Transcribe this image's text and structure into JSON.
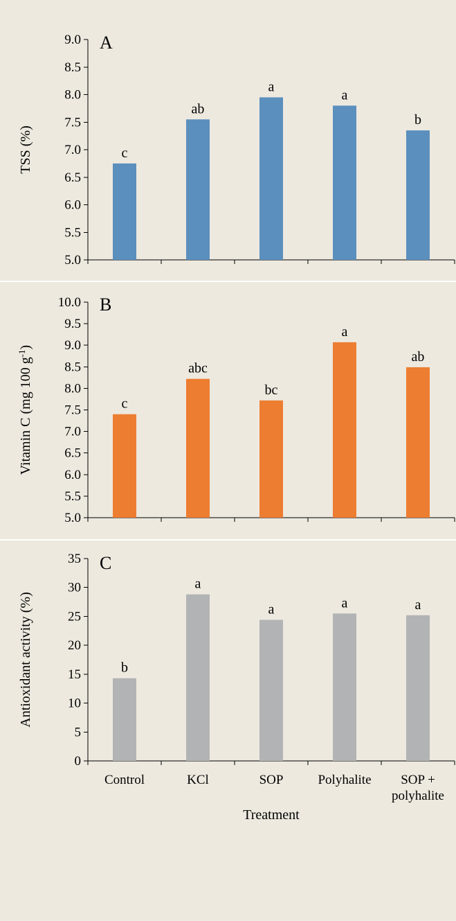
{
  "chart_data": [
    {
      "type": "bar",
      "panel": "A",
      "categories": [
        "Control",
        "KCl",
        "SOP",
        "Polyhalite",
        "SOP + polyhalite"
      ],
      "values": [
        6.75,
        7.55,
        7.95,
        7.8,
        7.35
      ],
      "annotations": [
        "c",
        "ab",
        "a",
        "a",
        "b"
      ],
      "ylabel": "TSS (%)",
      "ylim": [
        5.0,
        9.0
      ],
      "yticks": [
        "5.0",
        "5.5",
        "6.0",
        "6.5",
        "7.0",
        "7.5",
        "8.0",
        "8.5",
        "9.0"
      ],
      "color": "#5b8fbd",
      "grid": false
    },
    {
      "type": "bar",
      "panel": "B",
      "categories": [
        "Control",
        "KCl",
        "SOP",
        "Polyhalite",
        "SOP + polyhalite"
      ],
      "values": [
        7.4,
        8.22,
        7.72,
        9.07,
        8.49
      ],
      "annotations": [
        "c",
        "abc",
        "bc",
        "a",
        "ab"
      ],
      "ylabel": "Vitamin C (mg 100 g",
      "ylabel_sup": "-1",
      "ylabel_end": ")",
      "ylim": [
        5.0,
        10.0
      ],
      "yticks": [
        "5.0",
        "5.5",
        "6.0",
        "6.5",
        "7.0",
        "7.5",
        "8.0",
        "8.5",
        "9.0",
        "9.5",
        "10.0"
      ],
      "color": "#ed7d31",
      "grid": false
    },
    {
      "type": "bar",
      "panel": "C",
      "categories": [
        "Control",
        "KCl",
        "SOP",
        "Polyhalite",
        "SOP + polyhalite"
      ],
      "category_lines": [
        [
          "Control"
        ],
        [
          "KCl"
        ],
        [
          "SOP"
        ],
        [
          "Polyhalite"
        ],
        [
          "SOP +",
          "polyhalite"
        ]
      ],
      "values": [
        14.3,
        28.8,
        24.4,
        25.5,
        25.2
      ],
      "annotations": [
        "b",
        "a",
        "a",
        "a",
        "a"
      ],
      "ylabel": "Antioxidant activity (%)",
      "xlabel": "Treatment",
      "ylim": [
        0,
        35
      ],
      "yticks": [
        "0",
        "5",
        "10",
        "15",
        "20",
        "25",
        "30",
        "35"
      ],
      "color": "#b2b3b4",
      "grid": false
    }
  ]
}
